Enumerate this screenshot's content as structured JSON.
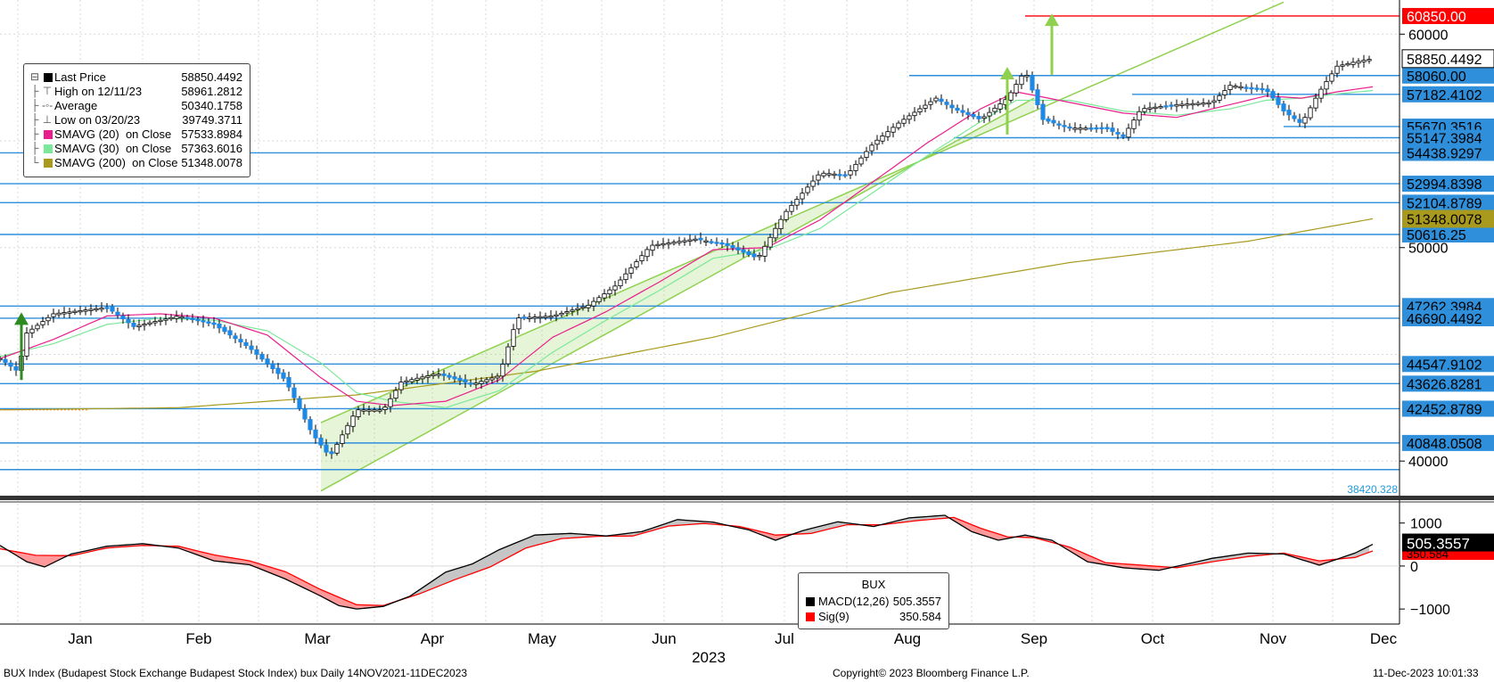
{
  "colors": {
    "price_up": "#000000",
    "price_down": "#1e88e5",
    "support_line": "#2f8fdb",
    "target_line": "#ff0000",
    "channel": "#8fd14f",
    "smavg20": "#e91e8c",
    "smavg30": "#7ce89a",
    "smavg200": "#a99a1e",
    "macd": "#000000",
    "signal": "#ff0000"
  },
  "legend": {
    "rows": [
      {
        "label": "Last Price",
        "value": "58850.4492",
        "swatch": "#000000",
        "icon": "box"
      },
      {
        "label": "High on 12/11/23",
        "value": "58961.2812",
        "icon": "high"
      },
      {
        "label": "Average",
        "value": "50340.1758",
        "icon": "avg"
      },
      {
        "label": "Low on 03/20/23",
        "value": "39749.3711",
        "icon": "low"
      },
      {
        "label": "SMAVG (20)  on Close",
        "value": "57533.8984",
        "swatch": "#e91e8c"
      },
      {
        "label": "SMAVG (30)  on Close",
        "value": "57363.6016",
        "swatch": "#7ce89a"
      },
      {
        "label": "SMAVG (200)  on Close",
        "value": "51348.0078",
        "swatch": "#a99a1e"
      }
    ]
  },
  "macd_legend": {
    "title": "BUX",
    "rows": [
      {
        "label": "MACD(12,26)",
        "value": "505.3557",
        "swatch": "#000000"
      },
      {
        "label": "Sig(9)",
        "value": "350.584",
        "swatch": "#ff0000"
      }
    ]
  },
  "chart_data": {
    "type": "candlestick",
    "x_labels": [
      "Jan",
      "Feb",
      "Mar",
      "Apr",
      "May",
      "Jun",
      "Jul",
      "Aug",
      "Sep",
      "Oct",
      "Nov",
      "Dec"
    ],
    "year_label": "2023",
    "y_ticks": [
      40000,
      50000,
      60000
    ],
    "ylim": [
      38420.328,
      61600
    ],
    "low_marker": "38420.328",
    "price_anchors": [
      [
        0,
        44800
      ],
      [
        10,
        44200
      ],
      [
        15,
        46000
      ],
      [
        30,
        46900
      ],
      [
        60,
        47200
      ],
      [
        75,
        46300
      ],
      [
        100,
        46800
      ],
      [
        120,
        46400
      ],
      [
        140,
        45300
      ],
      [
        160,
        43800
      ],
      [
        175,
        41300
      ],
      [
        185,
        40200
      ],
      [
        200,
        42400
      ],
      [
        215,
        42400
      ],
      [
        225,
        43700
      ],
      [
        245,
        44100
      ],
      [
        265,
        43600
      ],
      [
        280,
        44000
      ],
      [
        290,
        46700
      ],
      [
        310,
        46800
      ],
      [
        330,
        47300
      ],
      [
        345,
        48200
      ],
      [
        365,
        50100
      ],
      [
        390,
        50400
      ],
      [
        405,
        50200
      ],
      [
        425,
        49500
      ],
      [
        440,
        51600
      ],
      [
        460,
        53500
      ],
      [
        475,
        53400
      ],
      [
        490,
        54900
      ],
      [
        505,
        55900
      ],
      [
        525,
        57000
      ],
      [
        535,
        56500
      ],
      [
        550,
        56000
      ],
      [
        565,
        57000
      ],
      [
        575,
        58300
      ],
      [
        585,
        56000
      ],
      [
        600,
        55600
      ],
      [
        620,
        55600
      ],
      [
        630,
        55200
      ],
      [
        640,
        56500
      ],
      [
        660,
        56700
      ],
      [
        680,
        56800
      ],
      [
        690,
        57600
      ],
      [
        710,
        57400
      ],
      [
        720,
        56400
      ],
      [
        730,
        55800
      ],
      [
        740,
        57300
      ],
      [
        750,
        58500
      ],
      [
        760,
        58700
      ],
      [
        770,
        58850
      ]
    ],
    "sma20_anchors": [
      [
        0,
        44800
      ],
      [
        30,
        45700
      ],
      [
        60,
        46800
      ],
      [
        90,
        46900
      ],
      [
        120,
        46700
      ],
      [
        150,
        45900
      ],
      [
        180,
        43900
      ],
      [
        200,
        42800
      ],
      [
        220,
        42600
      ],
      [
        250,
        42800
      ],
      [
        280,
        43800
      ],
      [
        310,
        45800
      ],
      [
        340,
        47000
      ],
      [
        370,
        48400
      ],
      [
        400,
        49900
      ],
      [
        430,
        50000
      ],
      [
        460,
        51300
      ],
      [
        490,
        53100
      ],
      [
        520,
        54900
      ],
      [
        550,
        56500
      ],
      [
        570,
        57300
      ],
      [
        600,
        56800
      ],
      [
        630,
        56300
      ],
      [
        660,
        56100
      ],
      [
        690,
        56700
      ],
      [
        710,
        57100
      ],
      [
        730,
        57000
      ],
      [
        750,
        57300
      ],
      [
        770,
        57530
      ]
    ],
    "sma30_anchors": [
      [
        0,
        44900
      ],
      [
        30,
        45500
      ],
      [
        60,
        46400
      ],
      [
        90,
        46700
      ],
      [
        120,
        46600
      ],
      [
        150,
        46100
      ],
      [
        180,
        44600
      ],
      [
        200,
        43200
      ],
      [
        220,
        42800
      ],
      [
        250,
        42500
      ],
      [
        280,
        43300
      ],
      [
        310,
        45100
      ],
      [
        340,
        46600
      ],
      [
        370,
        48000
      ],
      [
        400,
        49500
      ],
      [
        430,
        49900
      ],
      [
        460,
        50900
      ],
      [
        490,
        52600
      ],
      [
        520,
        54300
      ],
      [
        550,
        55900
      ],
      [
        570,
        56900
      ],
      [
        600,
        56900
      ],
      [
        630,
        56400
      ],
      [
        660,
        56200
      ],
      [
        690,
        56500
      ],
      [
        710,
        56900
      ],
      [
        730,
        57000
      ],
      [
        750,
        57200
      ],
      [
        770,
        57360
      ]
    ],
    "sma200_anchors": [
      [
        0,
        42400
      ],
      [
        100,
        42500
      ],
      [
        200,
        43100
      ],
      [
        300,
        44200
      ],
      [
        400,
        45800
      ],
      [
        500,
        47900
      ],
      [
        600,
        49300
      ],
      [
        700,
        50300
      ],
      [
        770,
        51350
      ]
    ],
    "channel": {
      "lower": [
        [
          180,
          38600
        ],
        [
          580,
          57000
        ]
      ],
      "upper": [
        [
          180,
          41800
        ],
        [
          720,
          61500
        ]
      ],
      "shade_from_day": 180,
      "shade_to_day": 580
    },
    "horizontal_levels": [
      {
        "value": 60850.0,
        "label": "60850.00",
        "kind": "target",
        "from_day": 575
      },
      {
        "value": 58060.0,
        "label": "58060.00",
        "kind": "level",
        "from_day": 510
      },
      {
        "value": 57182.4102,
        "label": "57182.4102",
        "kind": "level",
        "from_day": 635
      },
      {
        "value": 55670.3516,
        "label": "55670.3516",
        "kind": "level",
        "from_day": 720
      },
      {
        "value": 55147.3984,
        "label": "55147.3984",
        "kind": "level",
        "from_day": 535
      },
      {
        "value": 54438.9297,
        "label": "54438.9297",
        "kind": "level",
        "from_day": 0
      },
      {
        "value": 52994.8398,
        "label": "52994.8398",
        "kind": "level",
        "from_day": 0
      },
      {
        "value": 52104.8789,
        "label": "52104.8789",
        "kind": "level",
        "from_day": 0
      },
      {
        "value": 50616.25,
        "label": "50616.25",
        "kind": "level",
        "from_day": 0
      },
      {
        "value": 47262.3984,
        "label": "47262.3984",
        "kind": "level",
        "from_day": 0
      },
      {
        "value": 46690.4492,
        "label": "46690.4492",
        "kind": "level",
        "from_day": 0
      },
      {
        "value": 44547.9102,
        "label": "44547.9102",
        "kind": "level",
        "from_day": 0
      },
      {
        "value": 43626.8281,
        "label": "43626.8281",
        "kind": "level",
        "from_day": 0
      },
      {
        "value": 42452.8789,
        "label": "42452.8789",
        "kind": "level",
        "from_day": 0
      },
      {
        "value": 40848.0508,
        "label": "40848.0508",
        "kind": "level",
        "from_day": 0
      },
      {
        "value": 39600,
        "label": "",
        "kind": "level",
        "from_day": 0
      }
    ],
    "axis_value_labels": [
      {
        "value": 58850.4492,
        "label": "58850.4492",
        "kind": "last"
      },
      {
        "value": 51348.0078,
        "label": "51348.0078",
        "kind": "sma200"
      }
    ],
    "arrows": [
      {
        "day": 12,
        "from": 43800,
        "to": 46800
      },
      {
        "day": 565,
        "from": 55300,
        "to": 58300
      },
      {
        "day": 590,
        "from": 58100,
        "to": 60800
      }
    ],
    "macd": {
      "y_ticks": [
        1000,
        0,
        -1000
      ],
      "ylim": [
        -1350,
        1450
      ],
      "macd_anchors": [
        [
          0,
          480
        ],
        [
          15,
          100
        ],
        [
          25,
          -20
        ],
        [
          40,
          280
        ],
        [
          60,
          460
        ],
        [
          80,
          520
        ],
        [
          100,
          420
        ],
        [
          120,
          120
        ],
        [
          140,
          30
        ],
        [
          160,
          -300
        ],
        [
          180,
          -700
        ],
        [
          190,
          -920
        ],
        [
          200,
          -1000
        ],
        [
          215,
          -940
        ],
        [
          230,
          -700
        ],
        [
          250,
          -140
        ],
        [
          265,
          50
        ],
        [
          280,
          380
        ],
        [
          300,
          720
        ],
        [
          320,
          760
        ],
        [
          340,
          700
        ],
        [
          360,
          800
        ],
        [
          380,
          1080
        ],
        [
          400,
          1020
        ],
        [
          420,
          840
        ],
        [
          435,
          600
        ],
        [
          450,
          820
        ],
        [
          470,
          1030
        ],
        [
          490,
          920
        ],
        [
          510,
          1120
        ],
        [
          530,
          1180
        ],
        [
          545,
          800
        ],
        [
          560,
          600
        ],
        [
          575,
          720
        ],
        [
          590,
          600
        ],
        [
          610,
          100
        ],
        [
          630,
          -40
        ],
        [
          650,
          -100
        ],
        [
          665,
          40
        ],
        [
          680,
          180
        ],
        [
          700,
          300
        ],
        [
          720,
          280
        ],
        [
          740,
          20
        ],
        [
          760,
          300
        ],
        [
          770,
          505
        ]
      ],
      "signal_anchors": [
        [
          0,
          400
        ],
        [
          20,
          250
        ],
        [
          40,
          240
        ],
        [
          60,
          420
        ],
        [
          80,
          480
        ],
        [
          100,
          460
        ],
        [
          120,
          260
        ],
        [
          140,
          120
        ],
        [
          160,
          -130
        ],
        [
          180,
          -550
        ],
        [
          200,
          -900
        ],
        [
          215,
          -920
        ],
        [
          235,
          -650
        ],
        [
          255,
          -320
        ],
        [
          275,
          -20
        ],
        [
          295,
          420
        ],
        [
          315,
          640
        ],
        [
          335,
          690
        ],
        [
          355,
          700
        ],
        [
          375,
          930
        ],
        [
          395,
          990
        ],
        [
          415,
          920
        ],
        [
          435,
          720
        ],
        [
          455,
          760
        ],
        [
          475,
          960
        ],
        [
          495,
          960
        ],
        [
          515,
          1060
        ],
        [
          535,
          1130
        ],
        [
          550,
          880
        ],
        [
          565,
          680
        ],
        [
          580,
          660
        ],
        [
          600,
          440
        ],
        [
          620,
          80
        ],
        [
          640,
          20
        ],
        [
          660,
          -40
        ],
        [
          680,
          100
        ],
        [
          700,
          220
        ],
        [
          720,
          300
        ],
        [
          740,
          120
        ],
        [
          760,
          200
        ],
        [
          770,
          350
        ]
      ],
      "macd_value_label": "505.3557",
      "signal_value_label": "350.584"
    }
  },
  "footer": {
    "left": "BUX Index (Budapest Stock Exchange Budapest Stock Index) bux  Daily 14NOV2021-11DEC2023",
    "center": "Copyright© 2023 Bloomberg Finance L.P.",
    "right": "11-Dec-2023 10:01:33"
  }
}
